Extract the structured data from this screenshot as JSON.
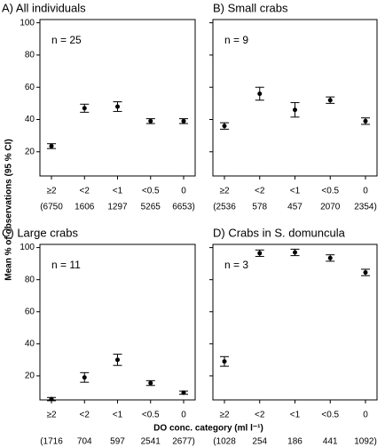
{
  "axis_labels": {
    "y": "Mean % of observations (95 % CI)",
    "x": "DO conc. category (ml l⁻¹)"
  },
  "chart_data": [
    {
      "type": "errorbar",
      "title": "A) All individuals",
      "annotation": "n = 25",
      "categories": [
        "≥2",
        "<2",
        "<1",
        "<0.5",
        "0"
      ],
      "sample_sizes": [
        "(6750",
        "1606",
        "1297",
        "5265",
        "6653)"
      ],
      "values": [
        23.5,
        47,
        48,
        39,
        39
      ],
      "errors": [
        1.5,
        2.5,
        3,
        1.5,
        1.5
      ],
      "ylim": [
        5,
        102
      ],
      "yticks": [
        20,
        40,
        60,
        80,
        100
      ],
      "show_ytick_labels": true,
      "color": "#000000"
    },
    {
      "type": "errorbar",
      "title": "B) Small crabs",
      "annotation": "n = 9",
      "categories": [
        "≥2",
        "<2",
        "<1",
        "<0.5",
        "0"
      ],
      "sample_sizes": [
        "(2536",
        "578",
        "457",
        "2070",
        "2354)"
      ],
      "values": [
        36,
        56,
        46,
        52,
        39
      ],
      "errors": [
        2,
        4,
        4.5,
        2,
        2
      ],
      "ylim": [
        5,
        102
      ],
      "yticks": [
        20,
        40,
        60,
        80,
        100
      ],
      "show_ytick_labels": false,
      "color": "#000000"
    },
    {
      "type": "errorbar",
      "title": "C) Large crabs",
      "annotation": "n = 11",
      "categories": [
        "≥2",
        "<2",
        "<1",
        "<0.5",
        "0"
      ],
      "sample_sizes": [
        "(1716",
        "704",
        "597",
        "2541",
        "2677)"
      ],
      "values": [
        5.5,
        19,
        30,
        15.5,
        9.5
      ],
      "errors": [
        1,
        3,
        3.5,
        1.5,
        1
      ],
      "ylim": [
        5,
        102
      ],
      "yticks": [
        20,
        40,
        60,
        80,
        100
      ],
      "show_ytick_labels": true,
      "color": "#000000"
    },
    {
      "type": "errorbar",
      "title": "D) Crabs in S. domuncula",
      "annotation": "n = 3",
      "categories": [
        "≥2",
        "<2",
        "<1",
        "<0.5",
        "0"
      ],
      "sample_sizes": [
        "(1028",
        "254",
        "186",
        "441",
        "1092)"
      ],
      "values": [
        29,
        96.5,
        97,
        93.5,
        84.5
      ],
      "errors": [
        3,
        2,
        2,
        2,
        2
      ],
      "ylim": [
        5,
        102
      ],
      "yticks": [
        20,
        40,
        60,
        80,
        100
      ],
      "show_ytick_labels": false,
      "color": "#000000"
    }
  ]
}
